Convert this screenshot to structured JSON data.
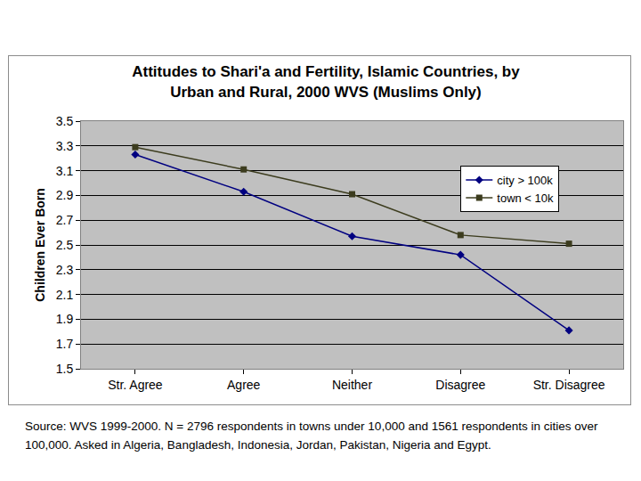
{
  "chart_data": {
    "type": "line",
    "title": [
      "Attitudes to Shari'a and Fertility, Islamic Countries, by",
      "Urban and Rural, 2000 WVS (Muslims Only)"
    ],
    "y_label": "Children Ever Born",
    "categories": [
      "Str. Agree",
      "Agree",
      "Neither",
      "Disagree",
      "Str. Disagree"
    ],
    "series": [
      {
        "name": "city > 100k",
        "color": "#000080",
        "marker": "diamond",
        "line_style": "solid",
        "values": [
          3.23,
          2.93,
          2.57,
          2.42,
          1.81
        ]
      },
      {
        "name": "town < 10k",
        "color": "#3c3c1e",
        "marker": "square",
        "line_style": "solid",
        "values": [
          3.29,
          3.11,
          2.91,
          2.58,
          2.51
        ]
      }
    ],
    "ylim": [
      1.5,
      3.5
    ],
    "yticks": [
      1.5,
      1.7,
      1.9,
      2.1,
      2.3,
      2.5,
      2.7,
      2.9,
      3.1,
      3.3,
      3.5
    ],
    "grid": true,
    "legend": "upper right",
    "annotations": [
      "Source: WVS 1999-2000. N = 2796 respondents in towns under 10,000 and 1561 respondents in cities over 100,000. Asked in Algeria, Bangladesh, Indonesia, Jordan, Pakistan, Nigeria and Egypt."
    ]
  }
}
